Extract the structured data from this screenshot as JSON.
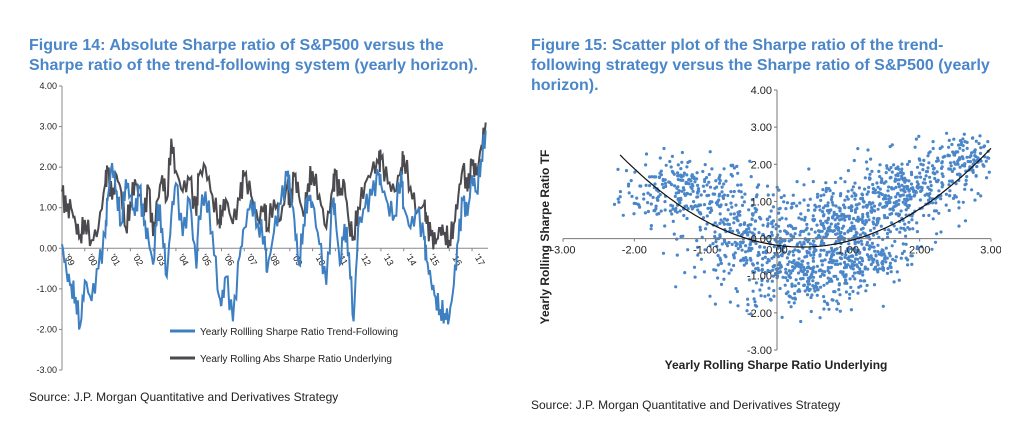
{
  "figures": [
    {
      "title": "Figure 14: Absolute Sharpe ratio of S&P500 versus the Sharpe ratio of the trend-following system (yearly horizon).",
      "source": "Source: J.P. Morgan Quantitative and Derivatives Strategy"
    },
    {
      "title": "Figure 15: Scatter plot of the Sharpe ratio of the trend-following strategy versus the Sharpe ratio of S&P500 (yearly horizon).",
      "source": "Source: J.P. Morgan Quantitative and Derivatives Strategy"
    }
  ],
  "chart_data": [
    {
      "type": "line",
      "ylim": [
        -3,
        4
      ],
      "yticks": [
        "4.00",
        "3.00",
        "2.00",
        "1.00",
        "0.00",
        "-1.00",
        "-2.00",
        "-3.00"
      ],
      "xlim": [
        1999.0,
        2017.7
      ],
      "xticks": [
        "'99",
        "'00",
        "'01",
        "'02",
        "'03",
        "'04",
        "'05",
        "'06",
        "'07",
        "'08",
        "'09",
        "'10",
        "'11",
        "'12",
        "'13",
        "'14",
        "'15",
        "'16",
        "'17"
      ],
      "legend_position": "bottom-center",
      "series": [
        {
          "name": "Yearly Rollling Sharpe Ratio Trend-Following",
          "color": "#3d7fc0",
          "x": [
            1999.0,
            1999.2,
            1999.4,
            1999.6,
            1999.8,
            2000.0,
            2000.3,
            2000.6,
            2000.9,
            2001.0,
            2001.2,
            2001.4,
            2001.6,
            2001.8,
            2002.0,
            2002.2,
            2002.4,
            2002.6,
            2002.8,
            2003.0,
            2003.2,
            2003.4,
            2003.6,
            2003.8,
            2004.0,
            2004.3,
            2004.6,
            2004.9,
            2005.0,
            2005.3,
            2005.6,
            2005.9,
            2006.0,
            2006.2,
            2006.5,
            2006.8,
            2007.0,
            2007.3,
            2007.6,
            2007.9,
            2008.0,
            2008.3,
            2008.6,
            2008.9,
            2009.0,
            2009.2,
            2009.4,
            2009.6,
            2009.8,
            2010.0,
            2010.3,
            2010.6,
            2010.9,
            2011.0,
            2011.2,
            2011.4,
            2011.6,
            2011.8,
            2012.0,
            2012.3,
            2012.6,
            2012.9,
            2013.0,
            2013.3,
            2013.6,
            2013.9,
            2014.0,
            2014.3,
            2014.6,
            2014.9,
            2015.0,
            2015.2,
            2015.4,
            2015.6,
            2015.8,
            2016.0,
            2016.2,
            2016.4,
            2016.6,
            2016.8,
            2017.0,
            2017.2,
            2017.4,
            2017.6
          ],
          "y": [
            0.1,
            -0.6,
            -0.9,
            -1.2,
            -1.9,
            -0.8,
            -1.3,
            -0.5,
            0.3,
            1.2,
            2.1,
            1.4,
            0.6,
            1.7,
            1.3,
            0.8,
            1.5,
            0.6,
            0.2,
            -0.4,
            1.1,
            0.5,
            -0.7,
            0.8,
            1.6,
            0.3,
            1.2,
            -0.5,
            0.8,
            1.4,
            0.4,
            -1.2,
            -1.4,
            -0.7,
            -1.8,
            -0.2,
            0.5,
            1.2,
            0.6,
            0.3,
            -0.6,
            0.4,
            1.1,
            1.8,
            1.5,
            0.7,
            -0.4,
            0.6,
            1.3,
            1.1,
            0.1,
            -0.9,
            1.2,
            0.8,
            -0.4,
            0.6,
            -0.1,
            -1.8,
            0.5,
            1.0,
            1.3,
            1.8,
            1.6,
            1.1,
            0.8,
            1.9,
            1.0,
            0.5,
            0.9,
            0.2,
            -0.3,
            -0.8,
            -1.2,
            -1.5,
            -1.6,
            -1.7,
            -0.9,
            0.2,
            1.2,
            0.8,
            1.8,
            1.4,
            2.2,
            2.9
          ]
        },
        {
          "name": "Yearly Rolling  Abs Sharpe Ratio Underlying",
          "color": "#4a4a4f",
          "x": [
            1999.0,
            1999.2,
            1999.4,
            1999.6,
            1999.8,
            2000.0,
            2000.3,
            2000.6,
            2000.9,
            2001.0,
            2001.2,
            2001.4,
            2001.6,
            2001.8,
            2002.0,
            2002.2,
            2002.4,
            2002.6,
            2002.8,
            2003.0,
            2003.2,
            2003.4,
            2003.6,
            2003.8,
            2004.0,
            2004.3,
            2004.6,
            2004.9,
            2005.0,
            2005.3,
            2005.6,
            2005.9,
            2006.0,
            2006.2,
            2006.5,
            2006.8,
            2007.0,
            2007.3,
            2007.6,
            2007.9,
            2008.0,
            2008.3,
            2008.6,
            2008.9,
            2009.0,
            2009.2,
            2009.4,
            2009.6,
            2009.8,
            2010.0,
            2010.3,
            2010.6,
            2010.9,
            2011.0,
            2011.2,
            2011.4,
            2011.6,
            2011.8,
            2012.0,
            2012.3,
            2012.6,
            2012.9,
            2013.0,
            2013.3,
            2013.6,
            2013.9,
            2014.0,
            2014.3,
            2014.6,
            2014.9,
            2015.0,
            2015.2,
            2015.4,
            2015.6,
            2015.8,
            2016.0,
            2016.2,
            2016.4,
            2016.6,
            2016.8,
            2017.0,
            2017.2,
            2017.4,
            2017.6
          ],
          "y": [
            1.4,
            0.9,
            1.0,
            0.6,
            0.3,
            0.7,
            0.2,
            0.5,
            1.6,
            1.9,
            1.2,
            1.8,
            1.4,
            0.5,
            1.1,
            1.7,
            1.3,
            0.8,
            1.5,
            0.3,
            1.2,
            1.8,
            1.2,
            2.7,
            1.9,
            1.4,
            1.7,
            0.8,
            1.8,
            2.0,
            1.3,
            0.7,
            0.9,
            1.2,
            0.6,
            1.2,
            1.8,
            1.3,
            0.7,
            1.1,
            0.5,
            1.2,
            0.7,
            1.6,
            1.0,
            1.8,
            1.3,
            0.8,
            1.6,
            1.9,
            1.3,
            0.5,
            1.5,
            1.8,
            1.3,
            1.6,
            0.6,
            0.3,
            1.0,
            1.6,
            1.9,
            2.1,
            2.2,
            1.6,
            1.4,
            2.0,
            2.3,
            1.5,
            0.9,
            1.1,
            0.6,
            0.3,
            0.1,
            0.5,
            0.4,
            0.2,
            0.6,
            1.3,
            2.0,
            1.4,
            2.1,
            1.8,
            2.5,
            3.1
          ]
        }
      ]
    },
    {
      "type": "scatter",
      "title": "",
      "xlabel": "Yearly Rolling Sharpe Ratio Underlying",
      "ylabel": "Yearly Rolling Sharpe Ratio TF",
      "xlim": [
        -3,
        3
      ],
      "ylim": [
        -3,
        4
      ],
      "xticks": [
        "-3.00",
        "-2.00",
        "-1.00",
        "0.00",
        "1.00",
        "2.00",
        "3.00"
      ],
      "yticks": [
        "4.00",
        "3.00",
        "2.00",
        "1.00",
        "0.00",
        "-1.00",
        "-2.00",
        "-3.00"
      ],
      "points_color": "#4a86c8",
      "trend": {
        "type": "quadratic",
        "a": 0.38,
        "b": -0.27,
        "c": -0.18,
        "x_range": [
          -2.2,
          3.0
        ],
        "color": "#111111"
      },
      "clusters": [
        {
          "cx": -1.3,
          "cy": 1.3,
          "sx": 0.45,
          "sy": 0.45,
          "n": 260
        },
        {
          "cx": -0.4,
          "cy": 0.1,
          "sx": 0.45,
          "sy": 0.55,
          "n": 240
        },
        {
          "cx": 0.3,
          "cy": -0.9,
          "sx": 0.5,
          "sy": 0.55,
          "n": 360
        },
        {
          "cx": 1.0,
          "cy": 0.3,
          "sx": 0.45,
          "sy": 0.55,
          "n": 360
        },
        {
          "cx": 1.8,
          "cy": 1.3,
          "sx": 0.45,
          "sy": 0.45,
          "n": 320
        },
        {
          "cx": 2.6,
          "cy": 2.2,
          "sx": 0.25,
          "sy": 0.3,
          "n": 120
        },
        {
          "cx": 1.3,
          "cy": -0.6,
          "sx": 0.3,
          "sy": 0.3,
          "n": 90
        }
      ]
    }
  ]
}
